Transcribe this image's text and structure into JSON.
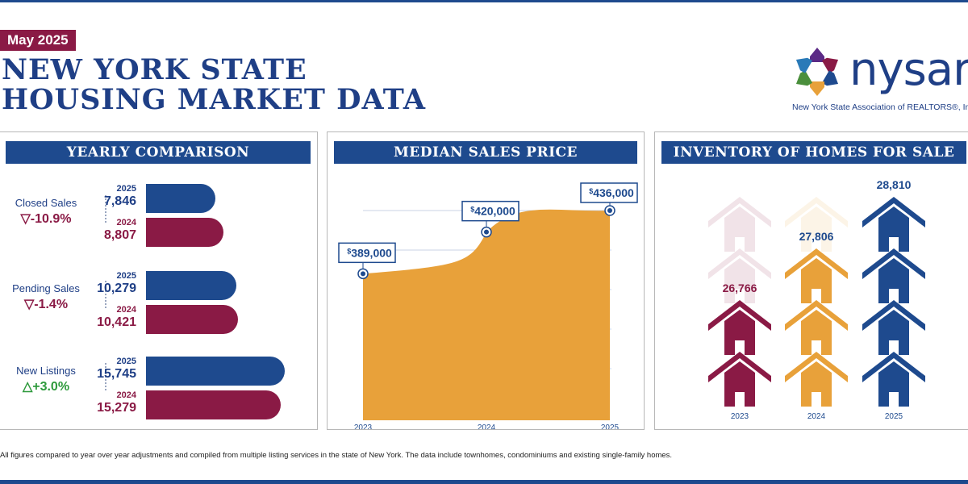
{
  "header": {
    "date_badge": "May 2025",
    "title_line1": "NEW YORK STATE",
    "title_line2": "HOUSING MARKET DATA"
  },
  "logo": {
    "text": "nysar",
    "subtitle": "New York State Association of REALTORS®, Inc",
    "colors": [
      "#5b2a86",
      "#8a1a45",
      "#1e4a8e",
      "#e8a13a",
      "#4a8f3c",
      "#2a7ab8"
    ]
  },
  "panels": {
    "yearly_title": "YEARLY COMPARISON",
    "price_title": "MEDIAN SALES PRICE",
    "inventory_title": "INVENTORY OF HOMES FOR SALE"
  },
  "footnote": "All figures compared to year over year adjustments and compiled from multiple listing services in the state of New York.  The data include townhomes, condominiums and existing single-family homes.",
  "colors": {
    "navy": "#1e4a8e",
    "maroon": "#8a1a45",
    "orange": "#e8a13a",
    "green": "#2e9a3c"
  },
  "chart_data": [
    {
      "type": "bar",
      "title": "YEARLY COMPARISON",
      "categories": [
        "Closed Sales",
        "Pending Sales",
        "New Listings"
      ],
      "changes": [
        "-10.9%",
        "-1.4%",
        "+3.0%"
      ],
      "change_directions": [
        "down",
        "down",
        "up"
      ],
      "series": [
        {
          "name": "2025",
          "values": [
            7846,
            10279,
            15745
          ],
          "labels": [
            "7,846",
            "10,279",
            "15,745"
          ]
        },
        {
          "name": "2024",
          "values": [
            8807,
            10421,
            15279
          ],
          "labels": [
            "8,807",
            "10,421",
            "15,279"
          ]
        }
      ]
    },
    {
      "type": "area",
      "title": "MEDIAN SALES PRICE",
      "x": [
        "2023",
        "2024",
        "2025"
      ],
      "values": [
        389000,
        420000,
        436000
      ],
      "labels": [
        "389,000",
        "420,000",
        "436,000"
      ],
      "currency_symbol": "$",
      "ylim": [
        280000,
        436000
      ]
    },
    {
      "type": "bar",
      "title": "INVENTORY OF HOMES FOR SALE",
      "categories": [
        "2023",
        "2024",
        "2025"
      ],
      "values": [
        26766,
        27806,
        28810
      ],
      "labels": [
        "26,766",
        "27,806",
        "28,810"
      ],
      "colors": [
        "#8a1a45",
        "#e8a13a",
        "#1e4a8e"
      ]
    }
  ]
}
